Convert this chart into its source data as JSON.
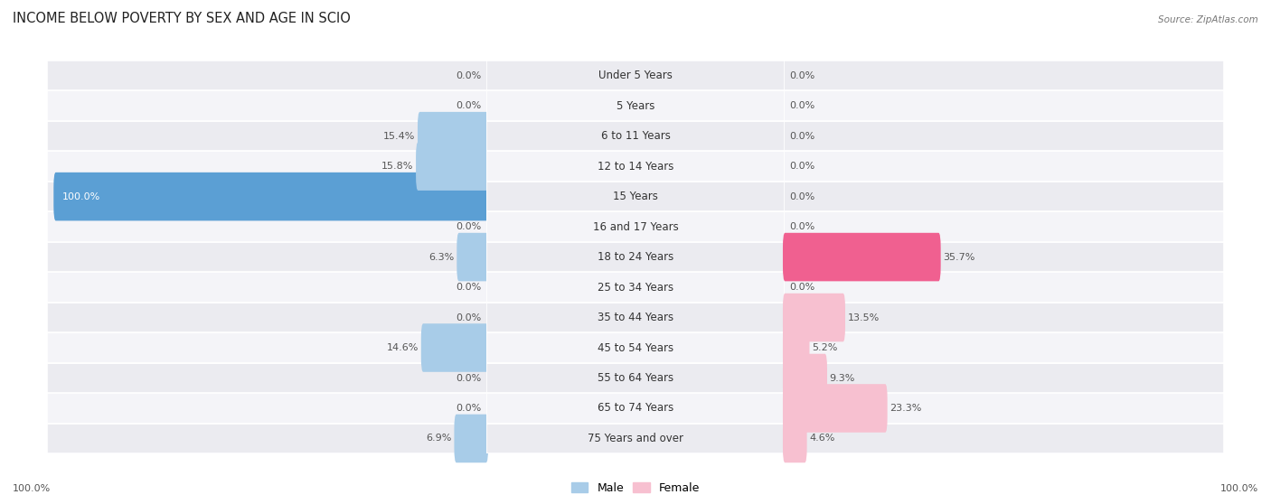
{
  "title": "INCOME BELOW POVERTY BY SEX AND AGE IN SCIO",
  "source": "Source: ZipAtlas.com",
  "categories": [
    "Under 5 Years",
    "5 Years",
    "6 to 11 Years",
    "12 to 14 Years",
    "15 Years",
    "16 and 17 Years",
    "18 to 24 Years",
    "25 to 34 Years",
    "35 to 44 Years",
    "45 to 54 Years",
    "55 to 64 Years",
    "65 to 74 Years",
    "75 Years and over"
  ],
  "male_values": [
    0.0,
    0.0,
    15.4,
    15.8,
    100.0,
    0.0,
    6.3,
    0.0,
    0.0,
    14.6,
    0.0,
    0.0,
    6.9
  ],
  "female_values": [
    0.0,
    0.0,
    0.0,
    0.0,
    0.0,
    0.0,
    35.7,
    0.0,
    13.5,
    5.2,
    9.3,
    23.3,
    4.6
  ],
  "male_color_light": "#A8CCE8",
  "male_color_strong": "#5B9FD4",
  "female_color_light": "#F7C0D0",
  "female_color_strong": "#F06090",
  "row_colors": [
    "#EBEBF0",
    "#F4F4F8"
  ],
  "title_fontsize": 10.5,
  "label_fontsize": 8.5,
  "value_fontsize": 8.0,
  "source_fontsize": 7.5,
  "legend_fontsize": 9,
  "max_value": 100.0,
  "legend_male": "Male",
  "legend_female": "Female",
  "x_axis_label_left": "100.0%",
  "x_axis_label_right": "100.0%"
}
